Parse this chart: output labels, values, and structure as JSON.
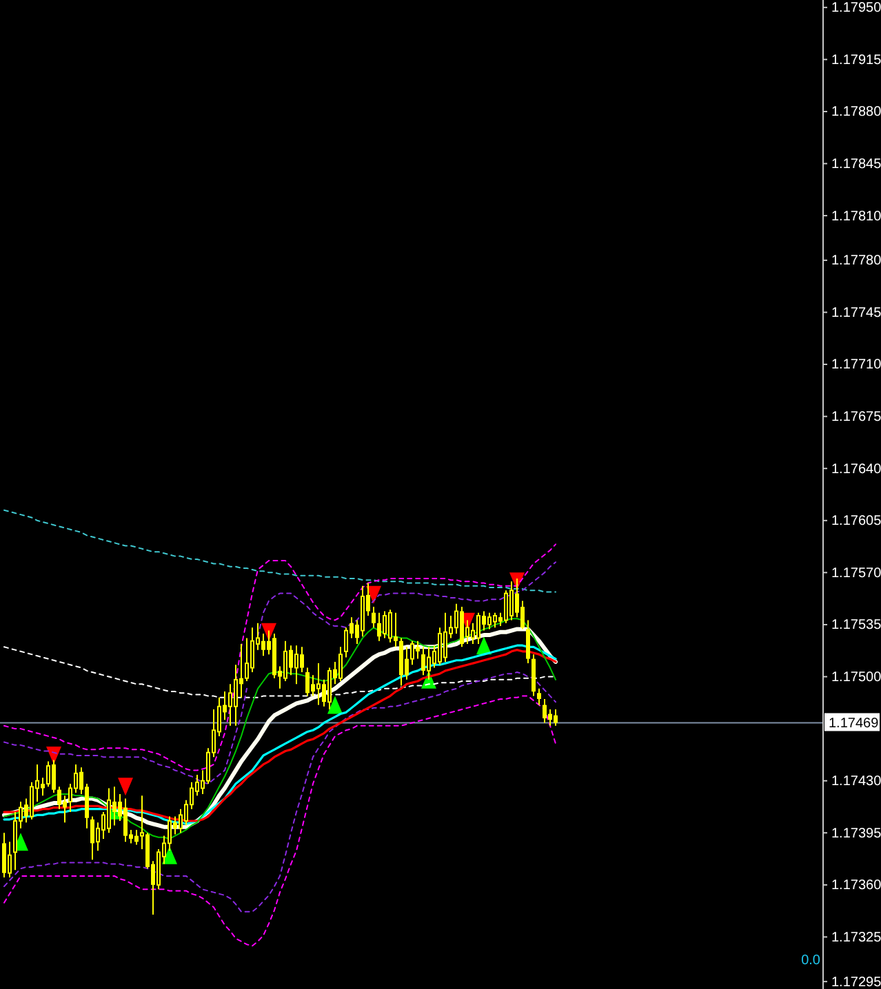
{
  "chart_data": {
    "type": "candlestick",
    "color": "#ffff00",
    "categories": [
      null,
      null,
      null,
      null,
      null,
      null,
      null,
      null,
      null,
      null,
      null,
      null,
      null,
      null,
      null,
      null,
      null,
      null,
      null,
      null,
      null,
      null,
      null,
      null,
      null,
      null,
      null,
      null,
      null,
      null,
      null,
      null,
      null,
      null,
      null,
      null,
      null,
      null,
      null,
      null,
      null,
      null,
      null,
      null,
      null,
      null,
      null,
      null,
      null,
      null,
      null,
      null,
      null,
      null,
      null,
      null,
      null,
      null,
      null,
      null,
      null,
      null,
      null,
      null,
      null,
      null,
      null,
      null,
      null,
      null,
      null,
      null,
      null,
      null,
      null,
      null,
      null,
      null,
      null,
      null,
      null,
      null,
      null,
      null,
      null,
      null,
      null,
      null,
      null,
      null,
      null,
      null,
      null,
      null,
      null,
      null,
      null,
      null,
      null,
      null,
      null
    ],
    "ohlc": [
      [
        1.17388,
        1.17395,
        1.17365,
        1.17368
      ],
      [
        1.17368,
        1.17389,
        1.17365,
        1.1738
      ],
      [
        1.17382,
        1.17409,
        1.1737,
        1.17403
      ],
      [
        1.17403,
        1.17416,
        1.17398,
        1.17412
      ],
      [
        1.17414,
        1.17418,
        1.17402,
        1.17406
      ],
      [
        1.17406,
        1.17429,
        1.17404,
        1.17426
      ],
      [
        1.17425,
        1.17441,
        1.17416,
        1.1743
      ],
      [
        1.17428,
        1.17432,
        1.1742,
        1.17425
      ],
      [
        1.17428,
        1.17443,
        1.17426,
        1.1744
      ],
      [
        1.17441,
        1.17444,
        1.17422,
        1.17424
      ],
      [
        1.17424,
        1.17426,
        1.17411,
        1.17414
      ],
      [
        1.17416,
        1.1742,
        1.17402,
        1.17412
      ],
      [
        1.17416,
        1.17428,
        1.17409,
        1.17425
      ],
      [
        1.17425,
        1.17441,
        1.17422,
        1.17435
      ],
      [
        1.17436,
        1.17439,
        1.17421,
        1.17424
      ],
      [
        1.17426,
        1.17428,
        1.17398,
        1.17405
      ],
      [
        1.17404,
        1.17406,
        1.17377,
        1.17388
      ],
      [
        1.17389,
        1.17402,
        1.17383,
        1.17398
      ],
      [
        1.17397,
        1.17409,
        1.17391,
        1.17407
      ],
      [
        1.17398,
        1.17425,
        1.17395,
        1.17417
      ],
      [
        1.17416,
        1.17426,
        1.174,
        1.17409
      ],
      [
        1.17416,
        1.17421,
        1.17403,
        1.17406
      ],
      [
        1.17412,
        1.17418,
        1.17389,
        1.17393
      ],
      [
        1.17394,
        1.17397,
        1.17388,
        1.17391
      ],
      [
        1.17393,
        1.17397,
        1.17387,
        1.17389
      ],
      [
        1.17393,
        1.1742,
        1.17384,
        1.17395
      ],
      [
        1.17394,
        1.17395,
        1.17371,
        1.17372
      ],
      [
        1.17374,
        1.17376,
        1.1734,
        1.1736
      ],
      [
        1.1736,
        1.17384,
        1.17357,
        1.17382
      ],
      [
        1.17379,
        1.17393,
        1.17374,
        1.17388
      ],
      [
        1.17388,
        1.17406,
        1.17383,
        1.17403
      ],
      [
        1.17402,
        1.17406,
        1.17394,
        1.17398
      ],
      [
        1.17398,
        1.17411,
        1.17395,
        1.17407
      ],
      [
        1.17403,
        1.17417,
        1.174,
        1.17414
      ],
      [
        1.17414,
        1.17429,
        1.17411,
        1.17425
      ],
      [
        1.17423,
        1.17434,
        1.1742,
        1.17429
      ],
      [
        1.17425,
        1.17437,
        1.17421,
        1.1743
      ],
      [
        1.1743,
        1.17452,
        1.17428,
        1.17449
      ],
      [
        1.17449,
        1.17478,
        1.17446,
        1.17464
      ],
      [
        1.17463,
        1.17486,
        1.1746,
        1.1748
      ],
      [
        1.17481,
        1.1749,
        1.17471,
        1.17476
      ],
      [
        1.1748,
        1.17495,
        1.17467,
        1.17489
      ],
      [
        1.1748,
        1.17508,
        1.17467,
        1.17498
      ],
      [
        1.17499,
        1.17522,
        1.17486,
        1.17495
      ],
      [
        1.17499,
        1.17526,
        1.17497,
        1.17509
      ],
      [
        1.17506,
        1.17533,
        1.17503,
        1.17524
      ],
      [
        1.17522,
        1.17536,
        1.17518,
        1.17526
      ],
      [
        1.17524,
        1.17529,
        1.17514,
        1.17518
      ],
      [
        1.17524,
        1.17531,
        1.17515,
        1.17518
      ],
      [
        1.17526,
        1.17529,
        1.17499,
        1.17501
      ],
      [
        1.17504,
        1.17507,
        1.17492,
        1.175
      ],
      [
        1.17499,
        1.17524,
        1.17497,
        1.17517
      ],
      [
        1.17518,
        1.17521,
        1.17501,
        1.17506
      ],
      [
        1.17506,
        1.17521,
        1.17495,
        1.17515
      ],
      [
        1.17515,
        1.1752,
        1.17503,
        1.17506
      ],
      [
        1.17503,
        1.17506,
        1.17487,
        1.17489
      ],
      [
        1.17495,
        1.17501,
        1.17487,
        1.1749
      ],
      [
        1.17492,
        1.17509,
        1.17481,
        1.17495
      ],
      [
        1.17495,
        1.17498,
        1.1748,
        1.17483
      ],
      [
        1.17483,
        1.17506,
        1.17478,
        1.17504
      ],
      [
        1.17505,
        1.1751,
        1.17495,
        1.17499
      ],
      [
        1.17499,
        1.1752,
        1.17497,
        1.17515
      ],
      [
        1.17517,
        1.17533,
        1.17513,
        1.17531
      ],
      [
        1.17536,
        1.1754,
        1.17526,
        1.17529
      ],
      [
        1.17535,
        1.17538,
        1.17522,
        1.17526
      ],
      [
        1.17531,
        1.17561,
        1.17527,
        1.17554
      ],
      [
        1.17555,
        1.17563,
        1.17541,
        1.17544
      ],
      [
        1.17543,
        1.17547,
        1.17533,
        1.17536
      ],
      [
        1.17536,
        1.17543,
        1.17524,
        1.17527
      ],
      [
        1.17529,
        1.17544,
        1.17526,
        1.17541
      ],
      [
        1.17526,
        1.17545,
        1.17523,
        1.17543
      ],
      [
        1.17527,
        1.17543,
        1.1752,
        1.17524
      ],
      [
        1.17524,
        1.17526,
        1.17494,
        1.17501
      ],
      [
        1.17512,
        1.1752,
        1.17498,
        1.17501
      ],
      [
        1.17512,
        1.17524,
        1.17508,
        1.17522
      ],
      [
        1.1752,
        1.17524,
        1.17512,
        1.17517
      ],
      [
        1.17515,
        1.1752,
        1.17501,
        1.17504
      ],
      [
        1.17504,
        1.1752,
        1.17498,
        1.17513
      ],
      [
        1.17509,
        1.17521,
        1.17506,
        1.17517
      ],
      [
        1.1751,
        1.17533,
        1.17508,
        1.17529
      ],
      [
        1.17513,
        1.17543,
        1.1751,
        1.1753
      ],
      [
        1.17529,
        1.17541,
        1.17526,
        1.17533
      ],
      [
        1.17533,
        1.17549,
        1.17529,
        1.17544
      ],
      [
        1.17544,
        1.17547,
        1.1752,
        1.17522
      ],
      [
        1.17527,
        1.17538,
        1.17522,
        1.17533
      ],
      [
        1.17526,
        1.17536,
        1.17522,
        1.17531
      ],
      [
        1.17526,
        1.17543,
        1.17522,
        1.17541
      ],
      [
        1.17541,
        1.17544,
        1.17531,
        1.17535
      ],
      [
        1.17535,
        1.17543,
        1.17532,
        1.1754
      ],
      [
        1.17537,
        1.17543,
        1.17533,
        1.17541
      ],
      [
        1.1754,
        1.17543,
        1.17534,
        1.17537
      ],
      [
        1.17538,
        1.17558,
        1.17536,
        1.17556
      ],
      [
        1.17541,
        1.17564,
        1.17538,
        1.17558
      ],
      [
        1.17556,
        1.17566,
        1.1754,
        1.17543
      ],
      [
        1.17547,
        1.17551,
        1.17532,
        1.17533
      ],
      [
        1.17532,
        1.17538,
        1.17509,
        1.17512
      ],
      [
        1.17512,
        1.17515,
        1.17487,
        1.1749
      ],
      [
        1.17489,
        1.17492,
        1.17481,
        1.17485
      ],
      [
        1.17481,
        1.17485,
        1.17469,
        1.17472
      ],
      [
        1.17475,
        1.17478,
        1.17467,
        1.17471
      ],
      [
        1.17474,
        1.17478,
        1.17467,
        1.17469
      ]
    ],
    "series": [
      {
        "type": "line",
        "color": "#40c8d0",
        "line_style": "dashed",
        "values": [
          1.17612,
          1.17611,
          1.1761,
          1.17609,
          1.17608,
          1.17607,
          1.17605,
          1.17604,
          1.17603,
          1.17602,
          1.17601,
          1.176,
          1.17599,
          1.17598,
          1.17597,
          1.17595,
          1.17594,
          1.17593,
          1.17592,
          1.17591,
          1.1759,
          1.17589,
          1.17588,
          1.17588,
          1.17587,
          1.17586,
          1.17585,
          1.17584,
          1.17584,
          1.17583,
          1.17582,
          1.17581,
          1.17581,
          1.1758,
          1.17579,
          1.17579,
          1.17578,
          1.17577,
          1.17576,
          1.17576,
          1.17575,
          1.17574,
          1.17574,
          1.17573,
          1.17573,
          1.17572,
          1.17571,
          1.17571,
          1.1757,
          1.1757,
          1.17569,
          1.17569,
          1.17569,
          1.17568,
          1.17568,
          1.17568,
          1.17568,
          1.17568,
          1.17567,
          1.17567,
          1.17567,
          1.17567,
          1.17566,
          1.17566,
          1.17566,
          1.17565,
          1.17565,
          1.17565,
          1.17564,
          1.17564,
          1.17564,
          1.17564,
          1.17564,
          1.17563,
          1.17563,
          1.17563,
          1.17563,
          1.17563,
          1.17562,
          1.17562,
          1.17562,
          1.17562,
          1.17562,
          1.17561,
          1.17561,
          1.17561,
          1.17561,
          1.17561,
          1.1756,
          1.1756,
          1.1756,
          1.1756,
          1.17559,
          1.17559,
          1.17559,
          1.17558,
          1.17558,
          1.17558,
          1.17557,
          1.17557,
          1.17557
        ]
      },
      {
        "type": "line",
        "color": "#ffffff",
        "line_style": "dashed",
        "values": [
          1.1752,
          1.17519,
          1.17518,
          1.17517,
          1.17516,
          1.17515,
          1.17514,
          1.17513,
          1.17512,
          1.17511,
          1.1751,
          1.17509,
          1.17508,
          1.17507,
          1.17506,
          1.17504,
          1.17503,
          1.17502,
          1.17501,
          1.175,
          1.17499,
          1.17498,
          1.17497,
          1.17496,
          1.17495,
          1.17495,
          1.17494,
          1.17493,
          1.17492,
          1.17491,
          1.1749,
          1.1749,
          1.17489,
          1.17489,
          1.17488,
          1.17488,
          1.17488,
          1.17487,
          1.17487,
          1.17486,
          1.17486,
          1.17486,
          1.17486,
          1.17486,
          1.17486,
          1.17486,
          1.17486,
          1.17487,
          1.17487,
          1.17487,
          1.17487,
          1.17487,
          1.17487,
          1.17487,
          1.17487,
          1.17487,
          1.17488,
          1.17488,
          1.17488,
          1.17488,
          1.17488,
          1.17488,
          1.17489,
          1.17489,
          1.1749,
          1.1749,
          1.1749,
          1.17491,
          1.17491,
          1.17492,
          1.17492,
          1.17492,
          1.17493,
          1.17493,
          1.17494,
          1.17494,
          1.17494,
          1.17495,
          1.17495,
          1.17496,
          1.17496,
          1.17496,
          1.17496,
          1.17497,
          1.17497,
          1.17497,
          1.17497,
          1.17497,
          1.17498,
          1.17498,
          1.17498,
          1.17498,
          1.17498,
          1.17499,
          1.17499,
          1.17499,
          1.17499,
          1.17499,
          1.175,
          1.175,
          1.175
        ]
      },
      {
        "type": "line",
        "color": "#ff00ff",
        "line_style": "dashed",
        "values": [
          1.17467,
          1.17466,
          1.17465,
          1.17465,
          1.17464,
          1.17463,
          1.17462,
          1.17461,
          1.1746,
          1.17459,
          1.17458,
          1.17456,
          1.17455,
          1.17454,
          1.17452,
          1.17451,
          1.17451,
          1.17451,
          1.17452,
          1.17452,
          1.17452,
          1.17452,
          1.17452,
          1.17451,
          1.17451,
          1.17451,
          1.1745,
          1.17449,
          1.17448,
          1.17446,
          1.17444,
          1.17442,
          1.1744,
          1.17438,
          1.17437,
          1.17437,
          1.17438,
          1.17439,
          1.17441,
          1.17451,
          1.17462,
          1.17479,
          1.17497,
          1.1752,
          1.17538,
          1.17556,
          1.17572,
          1.17575,
          1.17578,
          1.17578,
          1.17578,
          1.17578,
          1.17574,
          1.17568,
          1.17562,
          1.17556,
          1.1755,
          1.17545,
          1.17541,
          1.17539,
          1.17538,
          1.1754,
          1.17545,
          1.1755,
          1.17555,
          1.1756,
          1.17563,
          1.17564,
          1.17565,
          1.17565,
          1.17566,
          1.17566,
          1.17566,
          1.17566,
          1.17566,
          1.17566,
          1.17566,
          1.17566,
          1.17566,
          1.17566,
          1.17566,
          1.17565,
          1.17565,
          1.17564,
          1.17564,
          1.17564,
          1.17563,
          1.17563,
          1.17562,
          1.17562,
          1.17561,
          1.17561,
          1.17561,
          1.17561,
          1.17566,
          1.17571,
          1.17576,
          1.17579,
          1.17582,
          1.17585,
          1.17589
        ]
      },
      {
        "type": "line",
        "color": "#8a2be2",
        "line_style": "dashed",
        "values": [
          1.17456,
          1.17455,
          1.17454,
          1.17454,
          1.17453,
          1.17452,
          1.17451,
          1.1745,
          1.1745,
          1.17449,
          1.17448,
          1.17448,
          1.17448,
          1.17447,
          1.17447,
          1.17447,
          1.17447,
          1.17447,
          1.17446,
          1.17446,
          1.17446,
          1.17446,
          1.17446,
          1.17446,
          1.17446,
          1.17446,
          1.17444,
          1.17443,
          1.17441,
          1.1744,
          1.17439,
          1.17437,
          1.17436,
          1.17434,
          1.17433,
          1.17431,
          1.17429,
          1.17428,
          1.17431,
          1.17434,
          1.17437,
          1.17449,
          1.17462,
          1.17474,
          1.17492,
          null,
          1.17527,
          1.17543,
          1.17551,
          1.17554,
          1.17556,
          1.17556,
          1.17556,
          1.17553,
          1.1755,
          1.17547,
          1.17543,
          1.1754,
          1.17538,
          1.17535,
          1.17534,
          1.17534,
          1.17533,
          1.17536,
          1.17538,
          1.17543,
          1.17547,
          1.17551,
          1.17555,
          1.17555,
          1.17556,
          1.17556,
          1.17556,
          1.17556,
          1.17556,
          1.17556,
          1.17555,
          1.17555,
          1.17555,
          1.17554,
          1.17554,
          1.17553,
          1.17553,
          1.17552,
          1.17552,
          1.17551,
          1.17551,
          1.17551,
          1.17552,
          1.17552,
          1.17552,
          1.17554,
          1.17555,
          1.17557,
          1.17558,
          1.17561,
          1.17564,
          1.17567,
          1.1757,
          1.17574,
          1.17577
        ]
      },
      {
        "type": "line",
        "color": "#ff00ff",
        "line_style": "dashed",
        "values": [
          1.17348,
          1.17354,
          1.1736,
          1.17366,
          1.17366,
          1.17366,
          1.17366,
          1.17366,
          1.17366,
          1.17366,
          1.17366,
          1.17366,
          1.17366,
          1.17366,
          1.17366,
          1.17366,
          1.17366,
          1.17366,
          1.17366,
          1.17366,
          1.17366,
          1.17364,
          1.17363,
          1.17361,
          1.17359,
          1.17357,
          1.17357,
          1.17357,
          1.17357,
          1.17357,
          1.17356,
          1.17356,
          1.17356,
          1.17356,
          1.17354,
          1.17353,
          1.17351,
          1.17348,
          1.17345,
          1.17339,
          1.17333,
          1.17329,
          1.17324,
          1.17322,
          1.1732,
          1.17319,
          1.17322,
          1.17326,
          1.17334,
          1.17343,
          1.17355,
          1.17364,
          1.17374,
          1.17383,
          1.17398,
          1.17413,
          1.17428,
          1.17438,
          1.17448,
          1.17454,
          1.1746,
          1.17462,
          1.17464,
          1.17465,
          1.17467,
          1.17467,
          1.17467,
          1.17467,
          1.17467,
          1.17467,
          1.17467,
          1.17467,
          1.17467,
          1.17468,
          1.17469,
          1.1747,
          1.17471,
          1.17472,
          1.17473,
          1.17474,
          1.17475,
          1.17476,
          1.17477,
          1.17478,
          1.17479,
          1.1748,
          1.17481,
          1.17482,
          1.17483,
          1.17484,
          1.17485,
          1.17485,
          1.17486,
          1.17486,
          1.17487,
          1.17487,
          1.17484,
          1.17481,
          1.17478,
          1.17467,
          1.17455
        ]
      },
      {
        "type": "line",
        "color": "#8a2be2",
        "line_style": "dashed",
        "values": [
          1.17359,
          1.17363,
          1.17367,
          1.17371,
          1.17372,
          1.17372,
          1.17373,
          1.17373,
          1.17374,
          1.17374,
          1.17375,
          1.17375,
          1.17375,
          1.17375,
          1.17375,
          1.17375,
          1.17375,
          1.17375,
          1.17375,
          1.17374,
          1.17374,
          1.17374,
          1.17373,
          1.17373,
          1.17372,
          1.17372,
          1.17371,
          1.17369,
          1.17368,
          1.17366,
          1.17366,
          1.17366,
          1.17366,
          1.17366,
          1.17363,
          1.1736,
          1.17357,
          1.17356,
          1.17355,
          1.17354,
          1.17353,
          1.17351,
          1.17347,
          1.17342,
          1.17342,
          1.17342,
          1.17345,
          1.17349,
          1.17353,
          1.17359,
          1.17366,
          1.1738,
          1.17395,
          1.17409,
          1.17421,
          1.17434,
          1.17446,
          1.17452,
          1.17457,
          1.17463,
          1.17466,
          1.17469,
          1.17472,
          1.17474,
          1.17476,
          1.17478,
          1.17478,
          1.17479,
          1.17479,
          1.17479,
          1.1748,
          1.1748,
          1.17481,
          1.17482,
          1.17483,
          1.17484,
          1.17485,
          1.17486,
          1.17487,
          1.17488,
          1.1749,
          1.17491,
          1.17492,
          1.17494,
          1.17495,
          1.17496,
          1.17497,
          1.17498,
          1.17499,
          1.175,
          1.17501,
          1.17502,
          1.17502,
          1.17503,
          1.17502,
          1.175,
          1.17499,
          1.17495,
          1.17491,
          1.17487,
          1.17483
        ]
      },
      {
        "type": "line",
        "color": "#fffff0",
        "line_style": "solid",
        "values": [
          1.17407,
          1.17408,
          1.17409,
          1.1741,
          1.17411,
          1.17411,
          1.17412,
          1.17413,
          1.17414,
          1.17415,
          1.17415,
          1.17416,
          1.17417,
          1.17417,
          1.17418,
          1.17418,
          1.17418,
          1.17417,
          1.17415,
          1.17413,
          1.17411,
          1.1741,
          1.17408,
          1.17407,
          1.17405,
          1.17404,
          1.17402,
          1.17401,
          1.174,
          1.17399,
          1.17399,
          1.17399,
          1.17399,
          1.17399,
          1.17401,
          1.17403,
          1.17406,
          1.17409,
          1.17414,
          1.1742,
          1.17425,
          1.17431,
          1.17437,
          1.17443,
          1.17448,
          1.17453,
          1.17458,
          1.17464,
          1.1747,
          1.17474,
          1.17476,
          1.17478,
          1.1748,
          1.17482,
          1.17483,
          1.17484,
          1.17486,
          1.17487,
          1.17489,
          1.1749,
          1.17492,
          1.17495,
          1.17498,
          1.17501,
          1.17504,
          1.17507,
          1.1751,
          1.17513,
          1.17515,
          1.17516,
          1.17518,
          1.17519,
          1.17519,
          1.1752,
          1.1752,
          1.1752,
          1.1752,
          1.1752,
          1.1752,
          1.17521,
          1.17521,
          1.17521,
          1.17522,
          1.17524,
          1.17525,
          1.17526,
          1.17527,
          1.17528,
          1.17528,
          1.17529,
          1.1753,
          1.1753,
          1.17531,
          1.17532,
          1.17532,
          1.17532,
          1.17528,
          1.17524,
          1.17519,
          1.17514,
          1.1751
        ]
      },
      {
        "type": "line",
        "color": "#00ffff",
        "line_style": "solid",
        "values": [
          1.17404,
          1.17404,
          1.17405,
          1.17405,
          1.17406,
          1.17406,
          1.17407,
          1.17407,
          1.17408,
          1.17408,
          1.17409,
          1.17409,
          1.1741,
          1.1741,
          1.17411,
          1.17411,
          1.17411,
          1.17411,
          1.17411,
          1.17411,
          1.17411,
          1.17411,
          1.1741,
          1.1741,
          1.17409,
          1.17409,
          1.17408,
          1.17407,
          1.17406,
          1.17404,
          1.17403,
          1.17402,
          1.17402,
          1.17401,
          1.17402,
          1.17403,
          1.17406,
          1.17409,
          1.17412,
          1.17415,
          1.17418,
          1.17423,
          1.17428,
          1.17431,
          1.17434,
          1.17437,
          1.17442,
          1.17447,
          1.17449,
          1.17451,
          1.17453,
          1.17455,
          1.17457,
          1.17459,
          1.17461,
          1.17463,
          1.17464,
          1.17466,
          1.17469,
          1.17471,
          1.17473,
          1.17475,
          1.17476,
          1.17479,
          1.17482,
          1.17485,
          1.17488,
          1.1749,
          1.17492,
          1.17494,
          1.17496,
          1.17498,
          1.175,
          1.17501,
          1.17503,
          1.17504,
          1.17506,
          1.17507,
          1.17508,
          1.17508,
          1.17509,
          1.1751,
          1.17511,
          1.17511,
          1.17512,
          1.17513,
          1.17514,
          1.17515,
          1.17516,
          1.17517,
          1.17518,
          1.17519,
          1.1752,
          1.17521,
          1.17521,
          1.1752,
          1.1752,
          1.17518,
          1.17516,
          1.17514,
          1.17512
        ]
      },
      {
        "type": "line",
        "color": "#ff0000",
        "line_style": "solid",
        "values": [
          1.17409,
          1.17409,
          1.17409,
          1.1741,
          1.1741,
          1.1741,
          1.1741,
          1.17411,
          1.17411,
          1.17412,
          1.17412,
          1.17412,
          1.17412,
          1.17413,
          1.17413,
          1.17413,
          1.17413,
          1.17413,
          1.17412,
          1.17412,
          1.17412,
          1.17412,
          1.17411,
          1.17411,
          1.1741,
          1.1741,
          1.17409,
          1.17408,
          1.17407,
          1.17406,
          1.17405,
          1.17404,
          1.17404,
          1.17403,
          1.17403,
          1.17403,
          1.17404,
          1.17406,
          1.1741,
          1.17414,
          1.17418,
          1.17421,
          1.17425,
          1.17428,
          1.17432,
          1.17435,
          1.17438,
          1.17441,
          1.17443,
          1.17446,
          1.17448,
          1.1745,
          1.17451,
          1.17453,
          1.17455,
          1.17457,
          1.17458,
          1.1746,
          1.17462,
          1.17465,
          1.17467,
          1.17469,
          1.17471,
          1.17473,
          1.17475,
          1.17477,
          1.17479,
          1.17481,
          1.17483,
          1.17485,
          1.17487,
          1.1749,
          1.17492,
          1.17495,
          1.17496,
          1.17497,
          1.17499,
          1.175,
          1.17501,
          1.17502,
          1.17504,
          1.17505,
          1.17506,
          1.17507,
          1.17508,
          1.17509,
          1.1751,
          1.17511,
          1.17512,
          1.17513,
          1.17514,
          1.17515,
          1.17517,
          1.17518,
          1.17517,
          1.17517,
          1.17516,
          1.17515,
          1.17513,
          1.17512,
          1.1751
        ]
      },
      {
        "type": "line",
        "color": "#00c800",
        "line_style": "solid",
        "values": [
          1.17406,
          1.17407,
          1.17408,
          1.17409,
          1.17411,
          1.17412,
          1.17414,
          1.17416,
          1.17418,
          1.1742,
          1.17421,
          1.17421,
          1.17421,
          1.1742,
          1.1742,
          1.17419,
          1.17419,
          1.17418,
          1.17415,
          1.17412,
          1.17408,
          1.17406,
          1.17405,
          1.17402,
          1.174,
          1.17398,
          1.17395,
          1.17393,
          1.17392,
          1.17392,
          1.17391,
          1.17393,
          1.17395,
          1.17397,
          1.174,
          1.17402,
          1.17407,
          1.17412,
          1.17419,
          1.17426,
          1.17433,
          1.17441,
          1.1745,
          1.1746,
          1.17472,
          1.17482,
          1.17492,
          1.17497,
          1.17502,
          1.17503,
          1.17503,
          1.17503,
          1.17502,
          1.17502,
          1.17501,
          1.175,
          1.17499,
          1.17498,
          1.17497,
          1.17498,
          1.17499,
          1.17504,
          1.17508,
          1.17514,
          1.1752,
          1.17526,
          1.1753,
          1.17533,
          1.17531,
          1.17529,
          1.17527,
          1.17527,
          1.17526,
          1.17526,
          1.17524,
          1.17523,
          1.17521,
          1.1752,
          1.1752,
          1.17521,
          1.17521,
          1.17523,
          1.17524,
          1.17526,
          1.17527,
          1.17529,
          1.1753,
          1.17532,
          1.17533,
          1.17535,
          1.17536,
          1.17538,
          1.17539,
          1.17539,
          1.17538,
          1.17533,
          1.17527,
          1.1752,
          1.17513,
          1.17506,
          1.17498
        ]
      },
      {
        "type": "scatter",
        "color": "#ff0000",
        "marker": "triangle",
        "values": [
          null,
          null,
          null,
          null,
          null,
          null,
          null,
          null,
          null,
          1.17447,
          null,
          null,
          null,
          null,
          null,
          null,
          null,
          null,
          null,
          null,
          null,
          null,
          1.17426,
          null,
          null,
          null,
          null,
          null,
          null,
          null,
          null,
          null,
          null,
          null,
          null,
          null,
          null,
          null,
          null,
          null,
          null,
          null,
          null,
          null,
          null,
          null,
          null,
          null,
          1.1753,
          null,
          null,
          null,
          null,
          null,
          null,
          null,
          null,
          null,
          null,
          null,
          null,
          null,
          null,
          null,
          null,
          null,
          null,
          1.17555,
          null,
          null,
          null,
          null,
          null,
          null,
          null,
          null,
          null,
          null,
          null,
          null,
          null,
          null,
          null,
          null,
          1.17537,
          null,
          null,
          null,
          null,
          null,
          null,
          null,
          null,
          1.17564,
          null,
          null,
          null,
          null,
          null,
          null,
          null
        ]
      },
      {
        "type": "scatter",
        "color": "#00ff00",
        "marker": "triangle",
        "values": [
          null,
          null,
          null,
          1.17389,
          null,
          null,
          null,
          null,
          null,
          null,
          null,
          null,
          null,
          null,
          null,
          null,
          null,
          null,
          null,
          null,
          1.1741,
          null,
          null,
          null,
          null,
          null,
          null,
          null,
          null,
          null,
          1.1738,
          null,
          null,
          null,
          null,
          null,
          null,
          null,
          null,
          null,
          null,
          null,
          null,
          null,
          null,
          null,
          null,
          null,
          null,
          null,
          null,
          null,
          null,
          null,
          null,
          null,
          null,
          null,
          null,
          null,
          1.17481,
          null,
          null,
          null,
          null,
          null,
          null,
          null,
          null,
          null,
          null,
          null,
          null,
          null,
          null,
          null,
          null,
          1.17498,
          null,
          null,
          null,
          null,
          null,
          null,
          null,
          null,
          null,
          1.17521,
          null,
          null,
          null,
          null,
          null,
          null,
          null,
          null,
          null,
          null,
          null,
          null,
          null
        ]
      }
    ],
    "ylim": [
      1.1729,
      1.17955
    ],
    "yticks": [
      {
        "value": 1.1795,
        "label": "1.17950"
      },
      1.17915,
      {
        "value": 1.1788,
        "label": "1.17880"
      },
      1.17845,
      {
        "value": 1.1781,
        "label": "1.17810"
      },
      {
        "value": 1.1778,
        "label": "1.17780"
      },
      1.17745,
      {
        "value": 1.1771,
        "label": "1.17710"
      },
      1.17675,
      {
        "value": 1.1764,
        "label": "1.17640"
      },
      1.17605,
      {
        "value": 1.1757,
        "label": "1.17570"
      },
      1.17535,
      {
        "value": 1.175,
        "label": "1.17500"
      },
      {
        "value": 1.1743,
        "label": "1.17430"
      },
      1.17395,
      {
        "value": 1.1736,
        "label": "1.17360"
      },
      1.17325,
      1.17295
    ],
    "ref_lines": [
      {
        "axis": "y",
        "value": 1.17469,
        "label": "1.17469",
        "color": "#7f8fa6"
      }
    ],
    "annotations": [
      "0.0"
    ],
    "tick_labels": "y"
  }
}
